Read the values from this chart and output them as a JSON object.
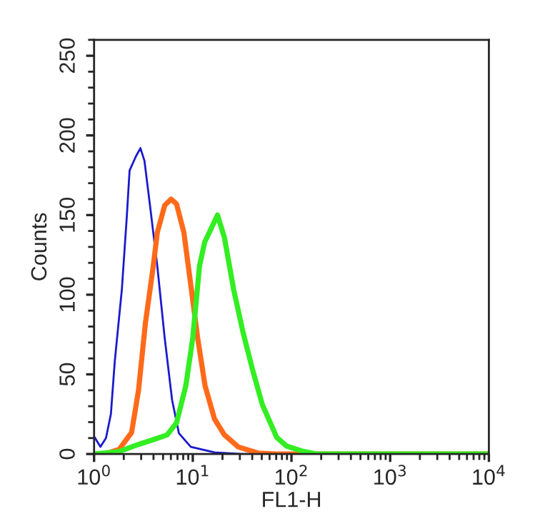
{
  "chart_data": {
    "type": "line",
    "xlabel": "FL1-H",
    "ylabel": "Counts",
    "log": "x",
    "xlim": [
      1,
      10000
    ],
    "xticks": [
      {
        "value": 1,
        "label": "10$^{0}$"
      },
      {
        "value": 10,
        "label": "10$^{1}$"
      },
      {
        "value": 100,
        "label": "10$^{2}$"
      },
      {
        "value": 1000,
        "label": "10$^{3}$"
      },
      {
        "value": 10000,
        "label": "10$^{4}$"
      }
    ],
    "ylim": [
      0,
      260
    ],
    "yticks": [
      0,
      50,
      100,
      150,
      200,
      250
    ],
    "grid": false,
    "legend": false,
    "marker": "none",
    "line_style": "solid",
    "series": [
      {
        "color": "#1a1acc",
        "x": [
          1,
          1.16,
          1.32,
          1.48,
          1.62,
          1.91,
          2.14,
          2.29,
          2.66,
          2.95,
          3.24,
          3.72,
          4.37,
          5.19,
          6.17,
          7.24,
          9.55,
          16.6,
          31.6,
          10000
        ],
        "values": [
          11,
          4.5,
          10,
          25,
          58,
          103,
          148,
          178,
          187,
          192,
          184,
          154,
          118,
          73,
          34,
          13,
          4.5,
          1,
          0,
          0
        ]
      },
      {
        "color": "#ff6a1a",
        "x": [
          1,
          1.29,
          1.8,
          2.4,
          2.82,
          3.31,
          3.98,
          4.37,
          5.19,
          6.03,
          6.84,
          8.13,
          9.55,
          11.2,
          13.3,
          16.6,
          20.9,
          28.8,
          45.7,
          70.8,
          10000
        ],
        "values": [
          0,
          0,
          3,
          13.5,
          40,
          82,
          118,
          139,
          156,
          160,
          157,
          139,
          106,
          73,
          43,
          22,
          12,
          4.5,
          0.6,
          0,
          0
        ]
      },
      {
        "color": "#33ee22",
        "x": [
          1,
          1.78,
          2.82,
          3.98,
          5.5,
          6.84,
          8.51,
          10,
          11.7,
          13.2,
          15.5,
          17.8,
          20.9,
          26,
          32.4,
          40.7,
          50.7,
          70.8,
          89.1,
          126,
          178,
          10000
        ],
        "values": [
          0,
          1.5,
          6,
          9,
          12,
          19.5,
          43,
          73,
          118,
          133,
          142,
          150,
          136,
          103,
          76,
          52,
          31,
          10.5,
          5,
          2,
          0,
          0
        ]
      }
    ]
  }
}
